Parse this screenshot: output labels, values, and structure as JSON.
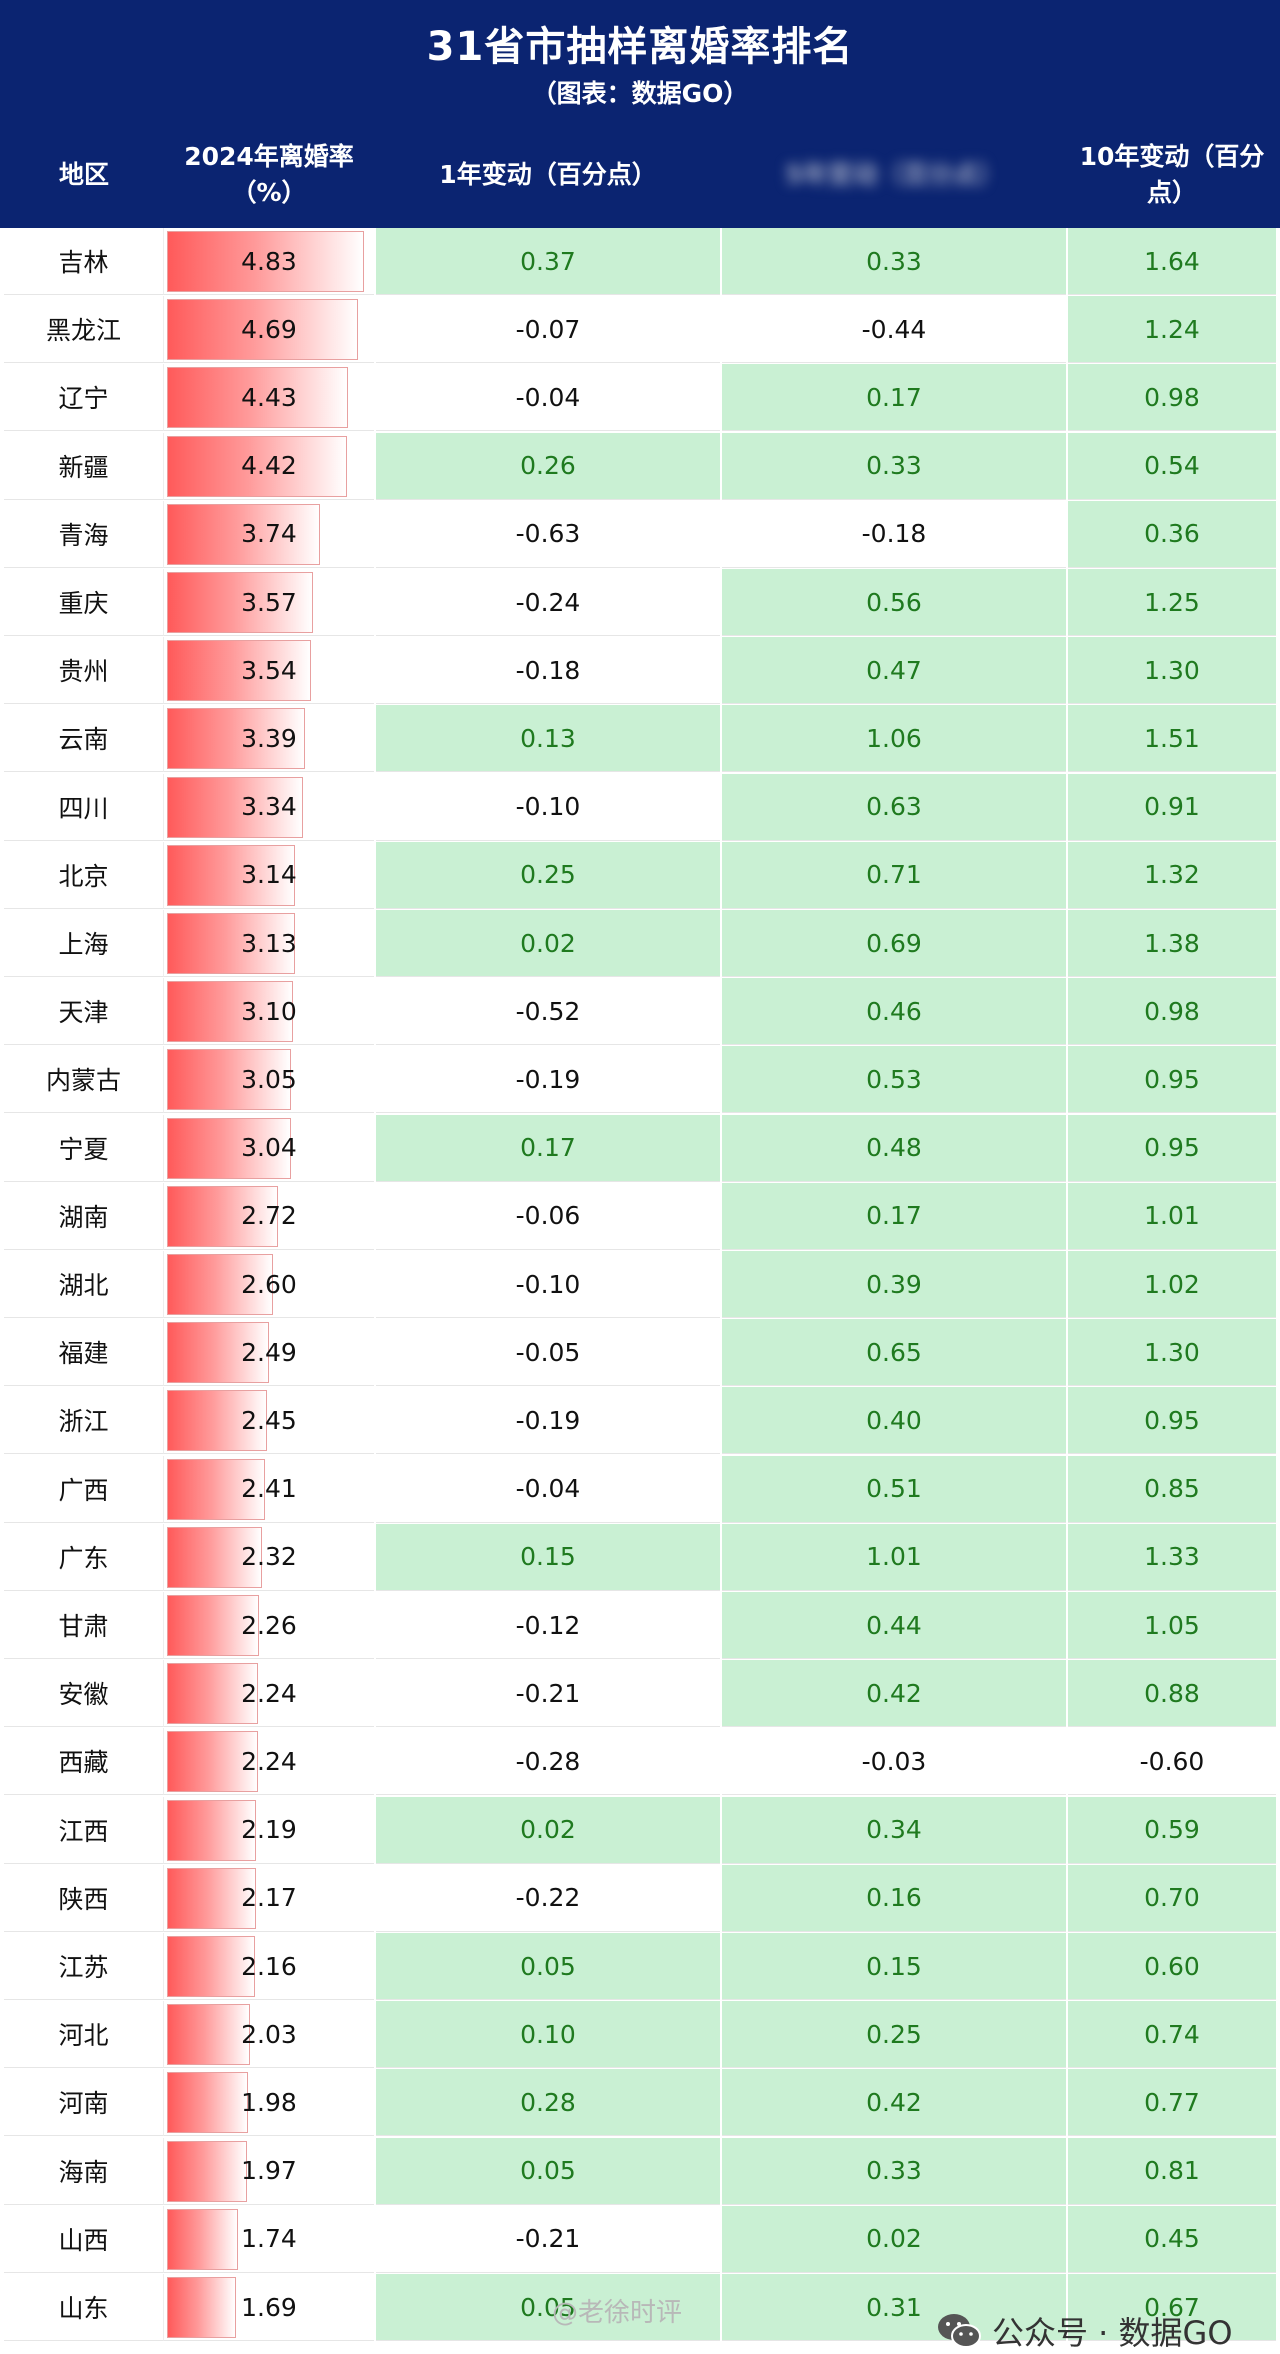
{
  "header": {
    "title": "31省市抽样离婚率排名",
    "subtitle": "（图表：数据GO）",
    "columns": [
      "地区",
      "2024年离婚率（%）",
      "1年变动（百分点）",
      "5年变动（百分点）",
      "10年变动（百分点）"
    ]
  },
  "chart_data": {
    "type": "table",
    "columns": [
      "地区",
      "2024年离婚率（%）",
      "1年变动（百分点）",
      "5年变动（百分点）",
      "10年变动（百分点）"
    ],
    "rows": [
      {
        "region": "吉林",
        "rate": "4.83",
        "c1": "0.37",
        "c2": "0.33",
        "c3": "1.64"
      },
      {
        "region": "黑龙江",
        "rate": "4.69",
        "c1": "-0.07",
        "c2": "-0.44",
        "c3": "1.24"
      },
      {
        "region": "辽宁",
        "rate": "4.43",
        "c1": "-0.04",
        "c2": "0.17",
        "c3": "0.98"
      },
      {
        "region": "新疆",
        "rate": "4.42",
        "c1": "0.26",
        "c2": "0.33",
        "c3": "0.54"
      },
      {
        "region": "青海",
        "rate": "3.74",
        "c1": "-0.63",
        "c2": "-0.18",
        "c3": "0.36"
      },
      {
        "region": "重庆",
        "rate": "3.57",
        "c1": "-0.24",
        "c2": "0.56",
        "c3": "1.25"
      },
      {
        "region": "贵州",
        "rate": "3.54",
        "c1": "-0.18",
        "c2": "0.47",
        "c3": "1.30"
      },
      {
        "region": "云南",
        "rate": "3.39",
        "c1": "0.13",
        "c2": "1.06",
        "c3": "1.51"
      },
      {
        "region": "四川",
        "rate": "3.34",
        "c1": "-0.10",
        "c2": "0.63",
        "c3": "0.91"
      },
      {
        "region": "北京",
        "rate": "3.14",
        "c1": "0.25",
        "c2": "0.71",
        "c3": "1.32"
      },
      {
        "region": "上海",
        "rate": "3.13",
        "c1": "0.02",
        "c2": "0.69",
        "c3": "1.38"
      },
      {
        "region": "天津",
        "rate": "3.10",
        "c1": "-0.52",
        "c2": "0.46",
        "c3": "0.98"
      },
      {
        "region": "内蒙古",
        "rate": "3.05",
        "c1": "-0.19",
        "c2": "0.53",
        "c3": "0.95"
      },
      {
        "region": "宁夏",
        "rate": "3.04",
        "c1": "0.17",
        "c2": "0.48",
        "c3": "0.95"
      },
      {
        "region": "湖南",
        "rate": "2.72",
        "c1": "-0.06",
        "c2": "0.17",
        "c3": "1.01"
      },
      {
        "region": "湖北",
        "rate": "2.60",
        "c1": "-0.10",
        "c2": "0.39",
        "c3": "1.02"
      },
      {
        "region": "福建",
        "rate": "2.49",
        "c1": "-0.05",
        "c2": "0.65",
        "c3": "1.30"
      },
      {
        "region": "浙江",
        "rate": "2.45",
        "c1": "-0.19",
        "c2": "0.40",
        "c3": "0.95"
      },
      {
        "region": "广西",
        "rate": "2.41",
        "c1": "-0.04",
        "c2": "0.51",
        "c3": "0.85"
      },
      {
        "region": "广东",
        "rate": "2.32",
        "c1": "0.15",
        "c2": "1.01",
        "c3": "1.33"
      },
      {
        "region": "甘肃",
        "rate": "2.26",
        "c1": "-0.12",
        "c2": "0.44",
        "c3": "1.05"
      },
      {
        "region": "安徽",
        "rate": "2.24",
        "c1": "-0.21",
        "c2": "0.42",
        "c3": "0.88"
      },
      {
        "region": "西藏",
        "rate": "2.24",
        "c1": "-0.28",
        "c2": "-0.03",
        "c3": "-0.60"
      },
      {
        "region": "江西",
        "rate": "2.19",
        "c1": "0.02",
        "c2": "0.34",
        "c3": "0.59"
      },
      {
        "region": "陕西",
        "rate": "2.17",
        "c1": "-0.22",
        "c2": "0.16",
        "c3": "0.70"
      },
      {
        "region": "江苏",
        "rate": "2.16",
        "c1": "0.05",
        "c2": "0.15",
        "c3": "0.60"
      },
      {
        "region": "河北",
        "rate": "2.03",
        "c1": "0.10",
        "c2": "0.25",
        "c3": "0.74"
      },
      {
        "region": "河南",
        "rate": "1.98",
        "c1": "0.28",
        "c2": "0.42",
        "c3": "0.77"
      },
      {
        "region": "海南",
        "rate": "1.97",
        "c1": "0.05",
        "c2": "0.33",
        "c3": "0.81"
      },
      {
        "region": "山西",
        "rate": "1.74",
        "c1": "-0.21",
        "c2": "0.02",
        "c3": "0.45"
      },
      {
        "region": "山东",
        "rate": "1.69",
        "c1": "0.05",
        "c2": "0.31",
        "c3": "0.67"
      }
    ],
    "rate_bar_max": 5.0,
    "colors": {
      "header_bg": "#0b2471",
      "positive_bg": "#c9f0d3",
      "positive_text": "#1f7a1f",
      "bar": "#ff5a5a"
    }
  },
  "watermarks": {
    "weibo": "@老徐时评",
    "wechat": "公众号 · 数据GO",
    "wechat_icon": "wechat-icon"
  }
}
